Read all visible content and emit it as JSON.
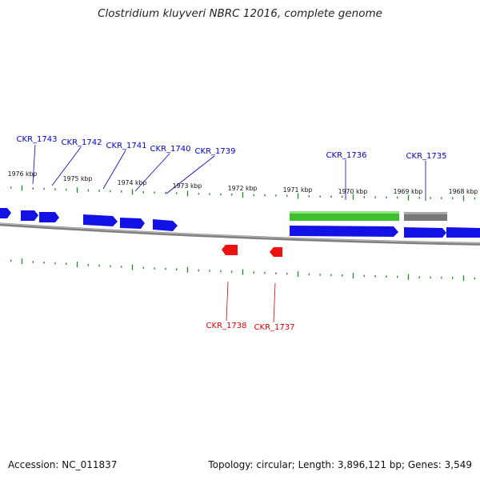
{
  "title": "Clostridium kluyveri NBRC 12016, complete genome",
  "footer": {
    "accession": "Accession: NC_011837",
    "summary": "Topology: circular; Length: 3,896,121 bp; Genes: 3,549"
  },
  "colors": {
    "forward_strand": "#1212e6",
    "reverse_strand": "#ee1111",
    "rna_feature": "#3fbf2f",
    "other_feature": "#777777",
    "backbone": "#808080",
    "tick": "#1f8a1f"
  },
  "scale_labels": [
    "1976 kbp",
    "1975 kbp",
    "1974 kbp",
    "1973 kbp",
    "1972 kbp",
    "1971 kbp",
    "1970 kbp",
    "1969 kbp",
    "1968 kbp"
  ],
  "gene_labels": {
    "forward": [
      "CKR_1743",
      "CKR_1742",
      "CKR_1741",
      "CKR_1740",
      "CKR_1739",
      "CKR_1736",
      "CKR_1735"
    ],
    "reverse": [
      "CKR_1738",
      "CKR_1737"
    ]
  }
}
